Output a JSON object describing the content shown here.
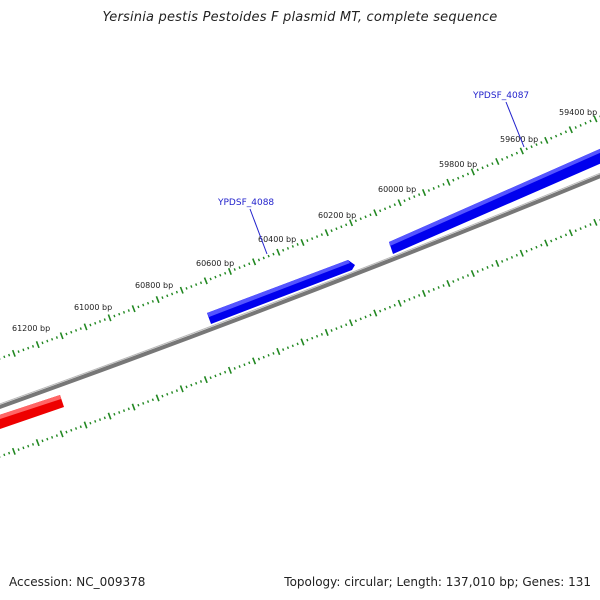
{
  "title": "Yersinia pestis Pestoides F plasmid MT, complete sequence",
  "footer": {
    "accession": "Accession: NC_009378",
    "summary": "Topology: circular; Length: 137,010 bp; Genes: 131"
  },
  "colors": {
    "backbone": "#888888",
    "forward_gene": "#0000ee",
    "reverse_gene": "#ee0000",
    "ticks": "#228822",
    "label_line": "#2222cc"
  },
  "scale_labels": [
    {
      "text": "61200 bp"
    },
    {
      "text": "61000 bp"
    },
    {
      "text": "60800 bp"
    },
    {
      "text": "60600 bp"
    },
    {
      "text": "60400 bp"
    },
    {
      "text": "60200 bp"
    },
    {
      "text": "60000 bp"
    },
    {
      "text": "59800 bp"
    },
    {
      "text": "59600 bp"
    },
    {
      "text": "59400 bp"
    }
  ],
  "gene_labels": [
    {
      "text": "YPDSF_4088"
    },
    {
      "text": "YPDSF_4087"
    }
  ]
}
